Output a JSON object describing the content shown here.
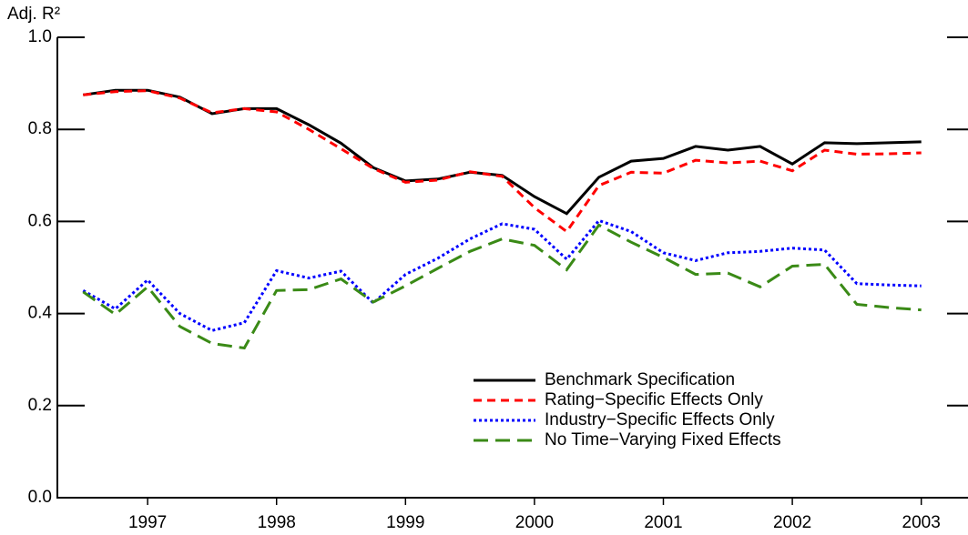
{
  "chart_data": {
    "type": "line",
    "y_label": "Adj. R²",
    "x": [
      1997,
      1997.25,
      1997.5,
      1997.75,
      1998,
      1998.25,
      1998.5,
      1998.75,
      1999,
      1999.25,
      1999.5,
      1999.75,
      2000,
      2000.25,
      2000.5,
      2000.75,
      2001,
      2001.25,
      2001.5,
      2001.75,
      2002,
      2002.25,
      2002.5,
      2002.75,
      2003,
      2003.25,
      2003.5
    ],
    "series": [
      {
        "name": "Benchmark Specification",
        "color": "#000000",
        "dash": "none",
        "values": [
          0.875,
          0.885,
          0.885,
          0.87,
          0.834,
          0.845,
          0.845,
          0.81,
          0.77,
          0.717,
          0.688,
          0.692,
          0.707,
          0.7,
          0.654,
          0.617,
          0.696,
          0.731,
          0.737,
          0.763,
          0.755,
          0.763,
          0.725,
          0.771,
          0.769,
          0.771,
          0.773
        ]
      },
      {
        "name": "Rating−Specific Effects Only",
        "color": "#ff0000",
        "dash": "9,6",
        "values": [
          0.875,
          0.882,
          0.884,
          0.868,
          0.836,
          0.845,
          0.838,
          0.8,
          0.758,
          0.715,
          0.685,
          0.69,
          0.708,
          0.698,
          0.63,
          0.578,
          0.678,
          0.707,
          0.705,
          0.733,
          0.727,
          0.731,
          0.71,
          0.755,
          0.746,
          0.747,
          0.749
        ]
      },
      {
        "name": "Industry−Specific Effects Only",
        "color": "#0000ff",
        "dash": "3,3",
        "values": [
          0.45,
          0.41,
          0.473,
          0.4,
          0.363,
          0.38,
          0.493,
          0.477,
          0.492,
          0.423,
          0.485,
          0.52,
          0.562,
          0.595,
          0.583,
          0.518,
          0.602,
          0.578,
          0.532,
          0.515,
          0.532,
          0.535,
          0.542,
          0.538,
          0.465,
          0.462,
          0.46
        ]
      },
      {
        "name": "No Time−Varying Fixed Effects",
        "color": "#3a8a16",
        "dash": "16,8",
        "values": [
          0.447,
          0.398,
          0.458,
          0.372,
          0.335,
          0.325,
          0.45,
          0.452,
          0.475,
          0.425,
          0.46,
          0.498,
          0.535,
          0.562,
          0.548,
          0.495,
          0.592,
          0.555,
          0.522,
          0.485,
          0.488,
          0.458,
          0.503,
          0.507,
          0.42,
          0.413,
          0.408
        ]
      }
    ],
    "xlim": [
      1996.8,
      2003.7
    ],
    "xticks": [
      {
        "value": 1997.5,
        "label": "1997"
      },
      {
        "value": 1998.5,
        "label": "1998"
      },
      {
        "value": 1999.5,
        "label": "1999"
      },
      {
        "value": 2000.5,
        "label": "2000"
      },
      {
        "value": 2001.5,
        "label": "2001"
      },
      {
        "value": 2002.5,
        "label": "2002"
      },
      {
        "value": 2003.5,
        "label": "2003"
      }
    ],
    "ylim": [
      0,
      1
    ],
    "yticks": [
      {
        "value": 0,
        "label": "0.0"
      },
      0.2,
      0.4,
      0.6,
      0.8,
      {
        "value": 1,
        "label": "1.0"
      }
    ],
    "legend": "bottom-right"
  }
}
